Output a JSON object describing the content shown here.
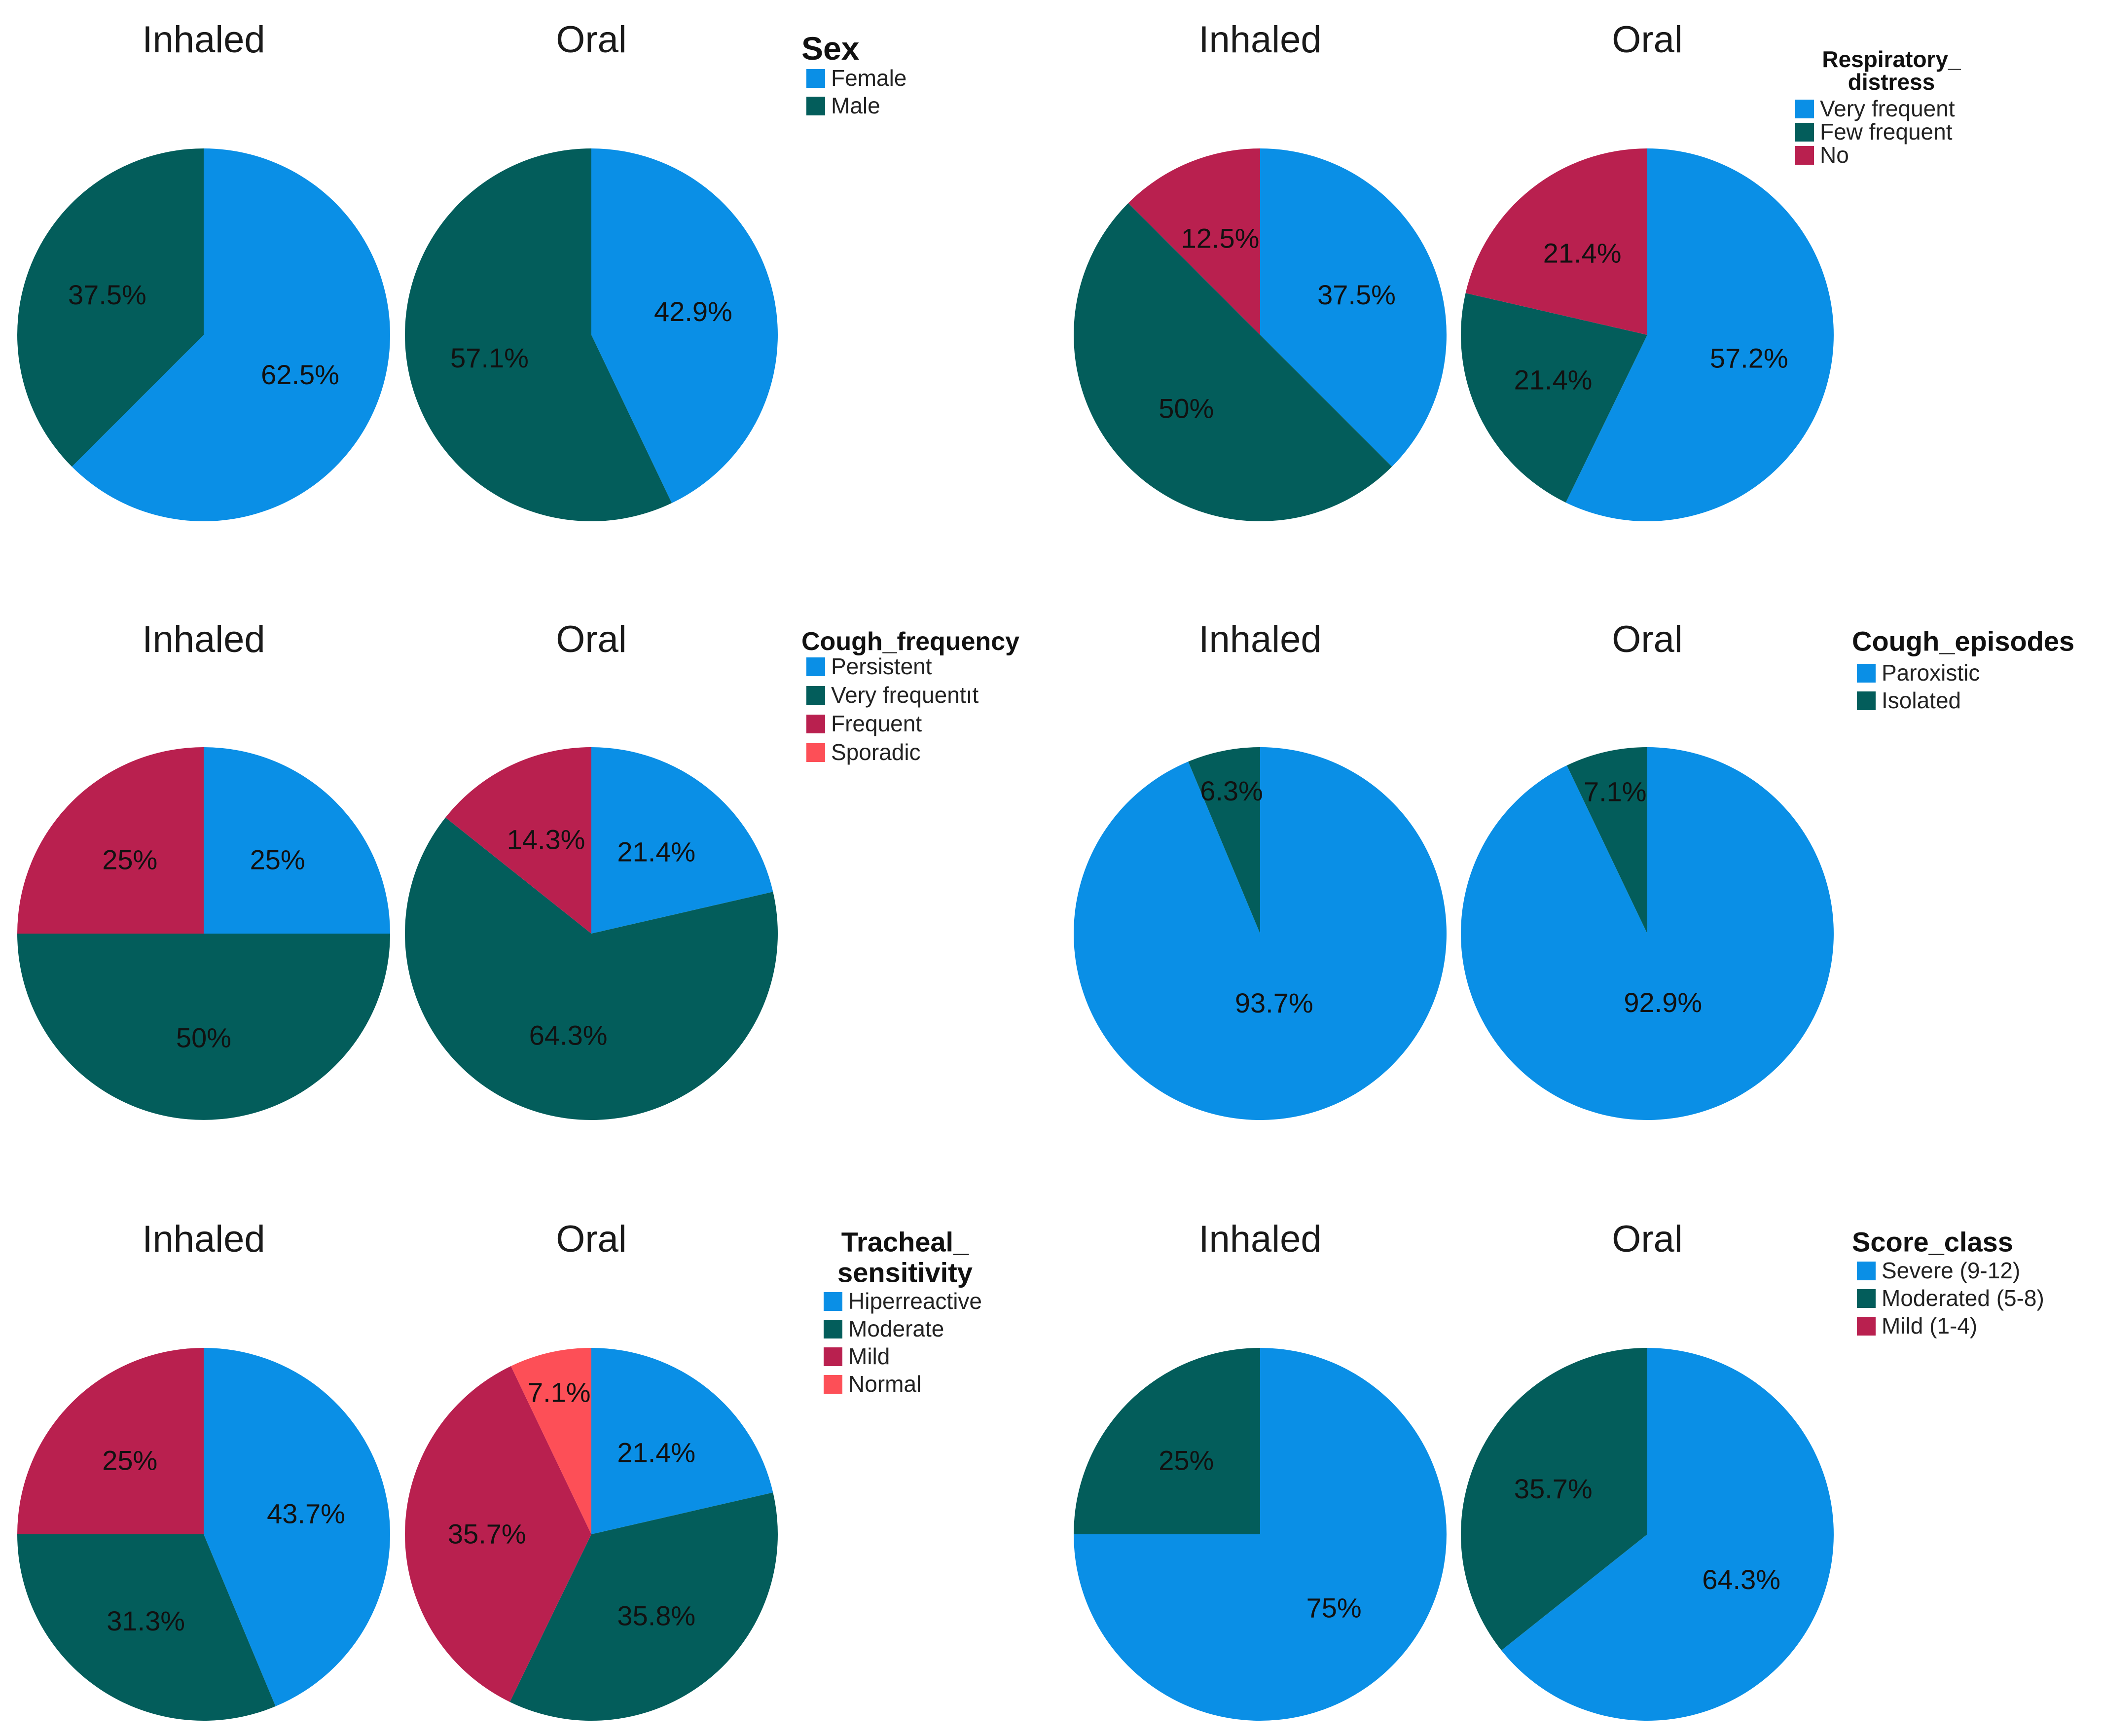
{
  "colors": {
    "blue": "#0a8fe6",
    "teal": "#035d5b",
    "crimson": "#b9204f",
    "coral": "#fd4f57"
  },
  "chart_data": [
    {
      "type": "pie",
      "variable": "Sex",
      "legend_title": "Sex",
      "categories": [
        "Female",
        "Male"
      ],
      "colors": [
        "#0a8fe6",
        "#035d5b"
      ],
      "series": [
        {
          "name": "Inhaled",
          "values": [
            62.5,
            37.5
          ],
          "labels": [
            "62.5%",
            "37.5%"
          ]
        },
        {
          "name": "Oral",
          "values": [
            42.9,
            57.1
          ],
          "labels": [
            "42.9%",
            "57.1%"
          ]
        }
      ]
    },
    {
      "type": "pie",
      "variable": "Respiratory_distress",
      "legend_title": "Respiratory_ distress",
      "categories": [
        "Very frequent",
        "Few frequent",
        "No"
      ],
      "colors": [
        "#0a8fe6",
        "#035d5b",
        "#b9204f"
      ],
      "series": [
        {
          "name": "Inhaled",
          "values": [
            37.5,
            50,
            12.5
          ],
          "labels": [
            "37.5%",
            "50%",
            "12.5%"
          ]
        },
        {
          "name": "Oral",
          "values": [
            57.2,
            21.4,
            21.4
          ],
          "labels": [
            "57.2%",
            "21.4%",
            "21.4%"
          ]
        }
      ]
    },
    {
      "type": "pie",
      "variable": "Cough_frequency",
      "legend_title": "Cough_frequency",
      "categories": [
        "Persistent",
        "Very frequentıt",
        "Frequent",
        "Sporadic"
      ],
      "colors": [
        "#0a8fe6",
        "#035d5b",
        "#b9204f",
        "#fd4f57"
      ],
      "series": [
        {
          "name": "Inhaled",
          "values": [
            25,
            50,
            25,
            0
          ],
          "labels": [
            "25%",
            "50%",
            "25%",
            ""
          ]
        },
        {
          "name": "Oral",
          "values": [
            21.4,
            64.3,
            14.3,
            0
          ],
          "labels": [
            "21.4%",
            "64.3%",
            "14.3%",
            ""
          ]
        }
      ]
    },
    {
      "type": "pie",
      "variable": "Cough_episodes",
      "legend_title": "Cough_episodes",
      "categories": [
        "Paroxistic",
        "Isolated"
      ],
      "colors": [
        "#0a8fe6",
        "#035d5b"
      ],
      "series": [
        {
          "name": "Inhaled",
          "values": [
            93.7,
            6.3
          ],
          "labels": [
            "93.7%",
            "6.3%"
          ]
        },
        {
          "name": "Oral",
          "values": [
            92.9,
            7.1
          ],
          "labels": [
            "92.9%",
            "7.1%"
          ]
        }
      ]
    },
    {
      "type": "pie",
      "variable": "Tracheal_sensitivity",
      "legend_title": "Tracheal_ sensitivity",
      "categories": [
        "Hiperreactive",
        "Moderate",
        "Mild",
        "Normal"
      ],
      "colors": [
        "#0a8fe6",
        "#035d5b",
        "#b9204f",
        "#fd4f57"
      ],
      "series": [
        {
          "name": "Inhaled",
          "values": [
            43.7,
            31.3,
            25,
            0
          ],
          "labels": [
            "43.7%",
            "31.3%",
            "25%",
            ""
          ]
        },
        {
          "name": "Oral",
          "values": [
            21.4,
            35.8,
            35.7,
            7.1
          ],
          "labels": [
            "21.4%",
            "35.8%",
            "35.7%",
            "7.1%"
          ]
        }
      ]
    },
    {
      "type": "pie",
      "variable": "Score_class",
      "legend_title": "Score_class",
      "categories": [
        "Severe (9-12)",
        "Moderated (5-8)",
        "Mild (1-4)"
      ],
      "colors": [
        "#0a8fe6",
        "#035d5b",
        "#b9204f"
      ],
      "series": [
        {
          "name": "Inhaled",
          "values": [
            75,
            25,
            0
          ],
          "labels": [
            "75%",
            "25%",
            ""
          ]
        },
        {
          "name": "Oral",
          "values": [
            64.3,
            35.7,
            0
          ],
          "labels": [
            "64.3%",
            "35.7%",
            ""
          ]
        }
      ]
    }
  ]
}
